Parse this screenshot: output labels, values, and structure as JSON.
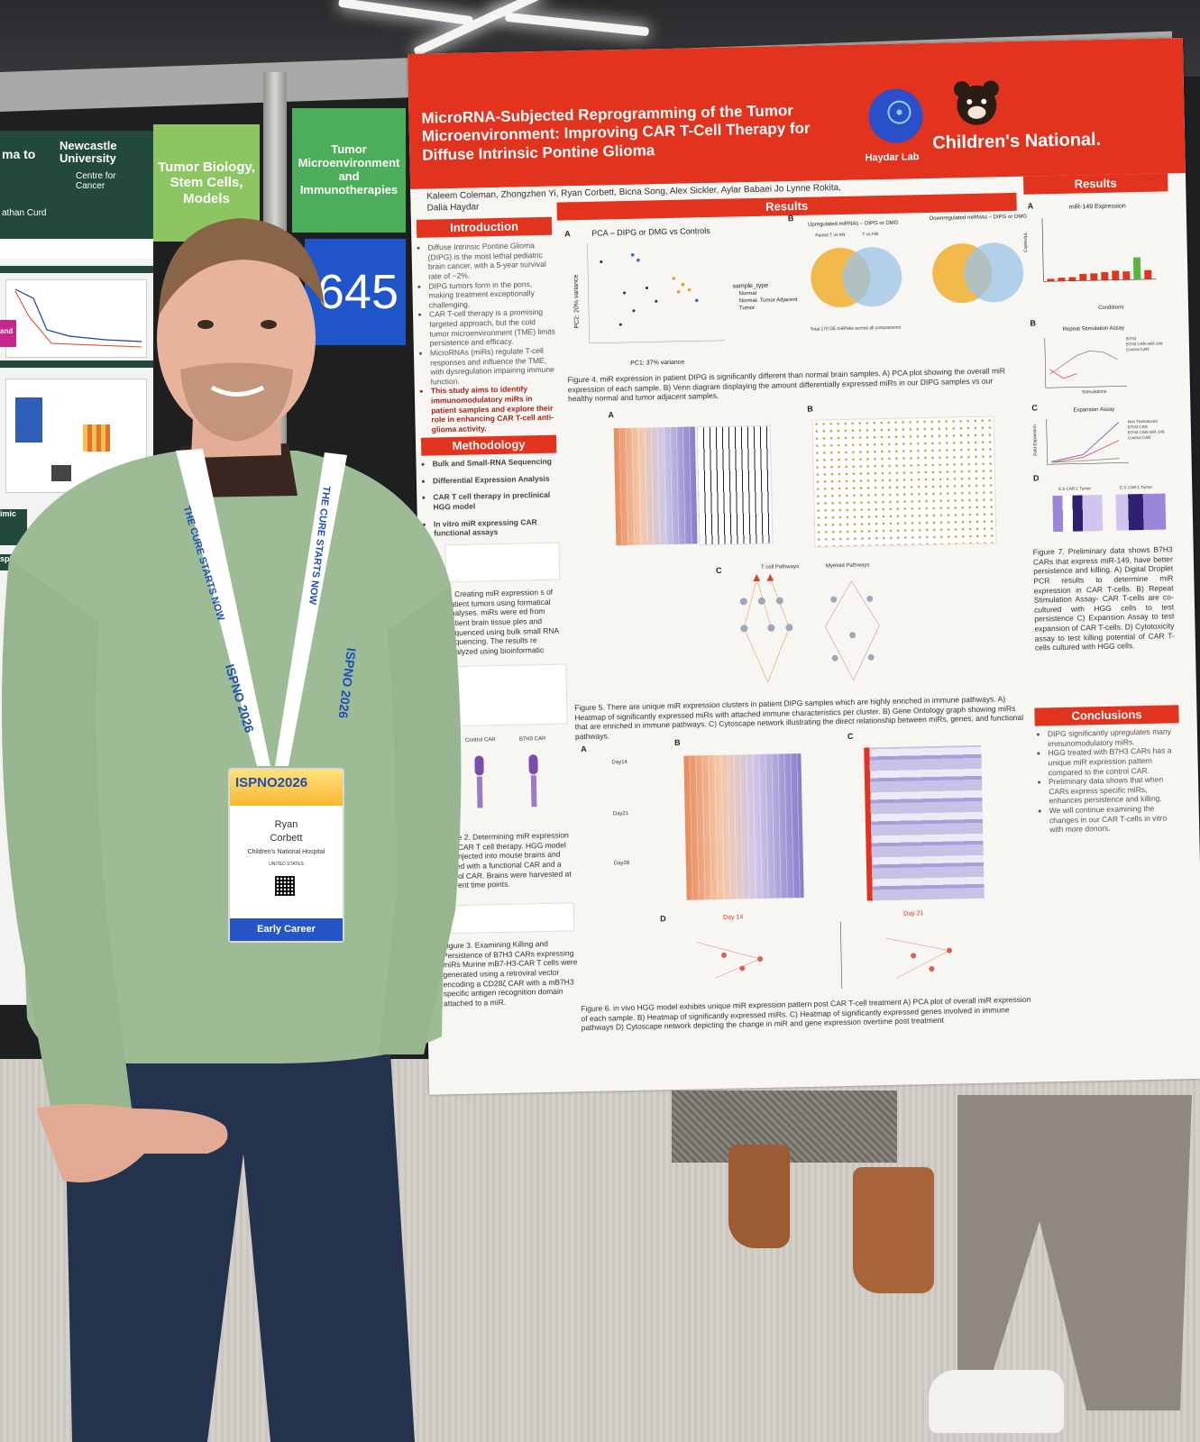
{
  "left_poster": {
    "heading_fragment": "ma to",
    "university": "Newcastle University",
    "centre": "Centre for Cancer",
    "author_fragment": "athan Curd",
    "side_fragment": "and",
    "side_fragment2": "imic",
    "side_fragment3": "spl"
  },
  "session_tags": {
    "tag1": "Tumor Biology, Stem Cells, Models",
    "tag2": "Tumor Microenvironment and Immunotherapies",
    "board_number": "645"
  },
  "poster": {
    "title": "MicroRNA-Subjected Reprogramming of the Tumor Microenvironment: Improving CAR T-Cell Therapy for Diffuse Intrinsic Pontine Glioma",
    "authors": "Kaleem Coleman, Zhongzhen Yi, Ryan Corbett, Bicna Song, Alex Sickler, Aylar Babaei Jo Lynne Rokita, Dalia Haydar",
    "lab_logo_text": "Haydar Lab",
    "institution_logo_text": "Children's National.",
    "sections": {
      "introduction": {
        "heading": "Introduction",
        "bullets": [
          "Diffuse Intrinsic Pontine Glioma (DIPG) is the most lethal pediatric brain cancer, with a 5-year survival rate of ~2%.",
          "DIPG tumors form in the pons, making treatment exceptionally challenging.",
          "CAR T-cell therapy is a promising targeted approach, but the cold tumor microenvironment (TME) limits persistence and efficacy.",
          "MicroRNAs (miRs) regulate T-cell responses and influence the TME, with dysregulation impairing immune function.",
          "This study aims to identify immunomodulatory miRs in patient samples and explore their role in enhancing CAR T-cell anti-glioma activity."
        ]
      },
      "methodology": {
        "heading": "Methodology",
        "bullets": [
          "Bulk and Small-RNA Sequencing",
          "Differential Expression Analysis",
          "CAR T cell therapy in preclinical HGG model",
          "In vitro miR expressing CAR functional assays"
        ],
        "fig1_caption": "1. Creating miR expression s of patient tumors using formatical analyses. miRs were ed from patient brain tissue ples and sequenced using bulk small RNA sequencing. The results re analyzed using bioinformatic",
        "fig2_labels": [
          "Control CAR",
          "B7H3 CAR"
        ],
        "fig2_caption": "Figure 2. Determining miR expression after CAR T cell therapy. HGG model was injected into mouse brains and treated with a functional CAR and a control CAR. Brains were harvested at different time points.",
        "fig3_caption": "Figure 3. Examining Killing and Persistence of B7H3 CARs expressing miRs Murine mB7-H3-CAR T cells were generated using a retroviral vector encoding a CD28ζ CAR with a mB7H3 specific antigen recognition domain attached to a miR."
      },
      "results_center": {
        "heading": "Results",
        "fig4": {
          "pca_title": "PCA – DIPG or DMG vs Controls",
          "pca_xlabel": "PC1: 37% variance",
          "pca_ylabel": "PC2: 20% variance",
          "legend_title": "sample_type",
          "legend_items": [
            "Normal",
            "Normal- Tumor Adjacent",
            "Tumor"
          ],
          "venn_up_title": "Upregulated miRNAs – DIPG or DMG",
          "venn_down_title": "Downregulated miRNAs – DIPG or DMG",
          "venn_set_labels": [
            "Paired T vs AN",
            "T vs HN"
          ],
          "venn_total": "Total 170 DE miRNAs across all comparisons",
          "caption": "Figure 4. miR expression in patient DIPG is significantly different than normal brain samples. A) PCA plot showing the overall miR expression of each sample. B) Venn diagram displaying the amount differentially expressed miRs in our DIPG samples vs our healthy normal and tumor adjacent samples."
        },
        "fig5": {
          "network_titles": [
            "T cell Pathways",
            "Myeloid Pathways"
          ],
          "caption": "Figure 5. There are unique miR expression clusters in patient DIPG samples which are highly enriched in immune pathways. A) Heatmap of significantly expressed miRs with attached immune characteristics per cluster. B) Gene Ontology graph showing miRs that are enriched in immune pathways. C) Cytoscape network illustrating the direct relationship between miRs, genes, and functional pathways."
        },
        "fig6": {
          "panel_titles": [
            "Day14",
            "Day21",
            "Day28"
          ],
          "network_titles": [
            "Day 14",
            "Day 21"
          ],
          "caption": "Figure 6. in vivo HGG model exhibits unique miR expression pattern post CAR T-cell treatment A) PCA plot of overall miR expression of each sample. B) Heatmap of significantly expressed miRs. C) Heatmap of significantly expressed genes involved in immune pathways D) Cytoscape network depicting the change in miR and gene expression overtime post treatment"
        }
      },
      "results_right": {
        "heading": "Results",
        "panelA_title": "miR-149 Expression",
        "panelA_xlabel": "Conditions",
        "panelA_ylabel": "Copies/µL",
        "panelB_title": "Repeat Stimulation Assay",
        "panelB_xlabel": "Stimulations",
        "panelB_legend": [
          "B7H3",
          "B7H3 CAR-miR-149",
          "Control CAR"
        ],
        "panelC_title": "Expansion Assay",
        "panelC_ylabel": "Fold Expansion",
        "panelC_legend": [
          "Non Transduced",
          "B7H3 CAR",
          "B7H3 CAR-miR-149",
          "Control CAR"
        ],
        "panelD_titles": [
          "E:S CAR:1 Tumor",
          "E:S CAR:1 Tumor"
        ],
        "caption": "Figure 7. Preliminary data shows B7H3 CARs that express miR-149, have better persistence and killing. A) Digital Droplet PCR results to determine miR expression in CAR T-cells. B) Repeat Stimulation Assay- CAR T-cells are co-cultured with HGG cells to test persistence C) Expansion Assay to test expansion of CAR T-cells. D) Cytotoxicity assay to test killing potential of CAR T-cells cultured with HGG cells."
      },
      "conclusions": {
        "heading": "Conclusions",
        "bullets": [
          "DIPG significantly upregulates many immunomodulatory miRs.",
          "HGG treated with B7H3 CARs has a unique miR expression pattern compared to the control CAR.",
          "Preliminary data shows that when CARs express specific miRs, enhances persistence and killing.",
          "We will continue examining the changes in our CAR T-cells in vitro with more donors."
        ]
      }
    },
    "chart_miR149": {
      "type": "bar",
      "values": [
        40,
        55,
        60,
        110,
        115,
        130,
        150,
        135,
        360,
        150
      ],
      "ylim": [
        0,
        1000
      ],
      "color": "#e2331f",
      "highlight_color": "#5cb342"
    },
    "panel_letters": [
      "A",
      "B",
      "C",
      "D"
    ]
  },
  "person": {
    "lanyard_text": "THE CURE STARTS NOW",
    "lanyard_logo": "ISPNO 2026",
    "badge": {
      "logo": "ISPNO2026",
      "first_name": "Ryan",
      "last_name": "Corbett",
      "institution": "Children's National Hospital",
      "country": "UNITED STATES",
      "category": "Early Career"
    }
  },
  "colors": {
    "poster_red": "#e2331f",
    "session_green_light": "#8ec563",
    "session_green": "#4cae5a",
    "board_blue": "#1f55c9",
    "sweater": "#9dbb95",
    "jeans": "#25324d"
  }
}
